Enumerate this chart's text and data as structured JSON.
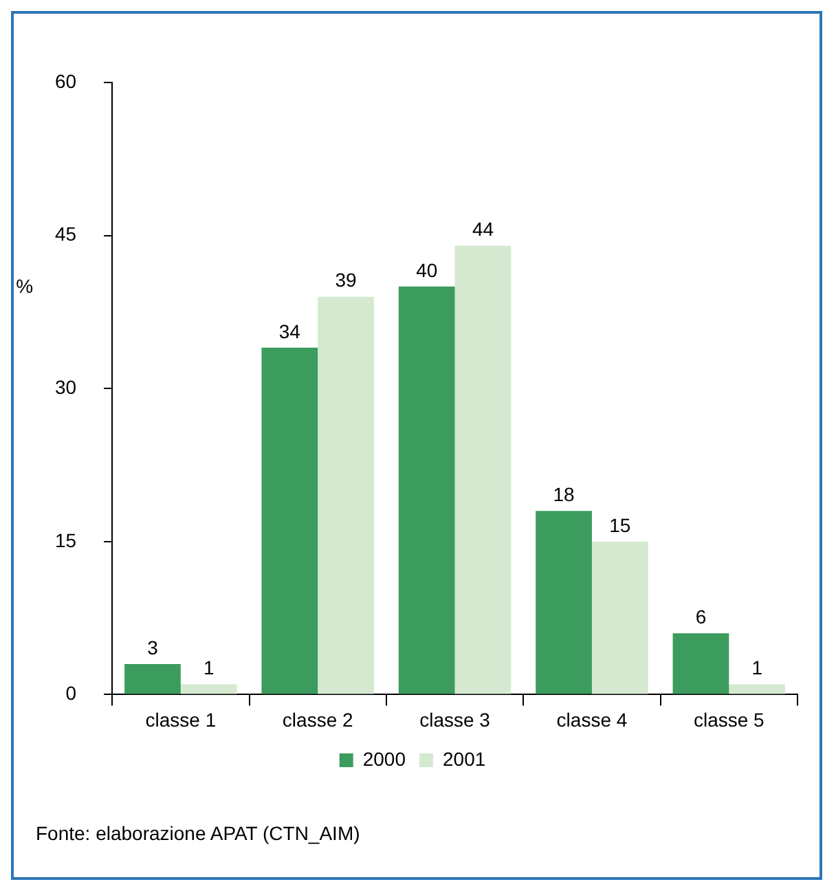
{
  "chart_data": {
    "type": "bar",
    "categories": [
      "classe 1",
      "classe 2",
      "classe 3",
      "classe 4",
      "classe 5"
    ],
    "series": [
      {
        "name": "2000",
        "color": "#3c9c5e",
        "values": [
          3,
          34,
          40,
          18,
          6
        ]
      },
      {
        "name": "2001",
        "color": "#d5e9d1",
        "values": [
          1,
          39,
          44,
          15,
          1
        ]
      }
    ],
    "ylabel": "%",
    "ylim": [
      0,
      60
    ],
    "yticks": [
      0,
      15,
      30,
      45,
      60
    ],
    "grid": false,
    "legend": "bottom",
    "data_labels": true,
    "annotations": [
      "Fonte: elaborazione APAT (CTN_AIM)"
    ]
  }
}
